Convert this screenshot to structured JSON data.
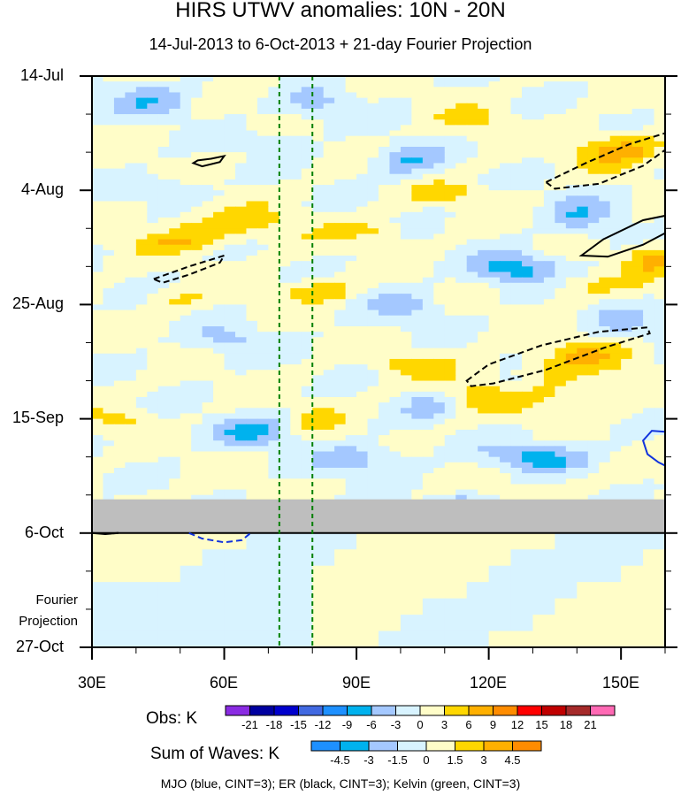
{
  "chart_data": {
    "type": "heatmap",
    "title": "HIRS UTWV anomalies: 10N - 20N",
    "subtitle": "14-Jul-2013 to 6-Oct-2013 + 21-day Fourier Projection",
    "x_axis": {
      "range": [
        30,
        160
      ],
      "ticks": [
        "30E",
        "60E",
        "90E",
        "120E",
        "150E"
      ]
    },
    "y_axis": {
      "range": [
        "14-Jul-2013",
        "27-Oct-2013"
      ],
      "ticks": [
        "14-Jul",
        "4-Aug",
        "25-Aug",
        "15-Sep",
        "6-Oct",
        "27-Oct"
      ]
    },
    "projection_label": [
      "Fourier",
      "Projection"
    ],
    "missing_data_band": {
      "from": "30-Sep-2013",
      "to": "6-Oct-2013",
      "color": "#bebebe"
    },
    "kelvin_phase_lines_lon": [
      72.5,
      80
    ],
    "obs_colorbar": {
      "title": "Obs: K",
      "levels": [
        "-21",
        "-18",
        "-15",
        "-12",
        "-9",
        "-6",
        "-3",
        "0",
        "3",
        "6",
        "9",
        "12",
        "15",
        "18",
        "21"
      ],
      "colors": [
        "#8a2be2",
        "#0000a0",
        "#0000cd",
        "#4169e1",
        "#1e90ff",
        "#00b2ee",
        "#a4c8ff",
        "#d8f3ff",
        "#fffdc8",
        "#ffd700",
        "#ffb000",
        "#ff8c00",
        "#ff0000",
        "#c00000",
        "#a52a2a",
        "#ff69b4"
      ]
    },
    "waves_colorbar": {
      "title": "Sum of Waves: K",
      "levels": [
        "-4.5",
        "-3",
        "-1.5",
        "0",
        "1.5",
        "3",
        "4.5"
      ],
      "colors": [
        "#1e90ff",
        "#00b2ee",
        "#a4c8ff",
        "#d8f3ff",
        "#fffdc8",
        "#ffd700",
        "#ffb000",
        "#ff8c00"
      ]
    },
    "contours": [
      {
        "wave": "MJO",
        "color": "blue",
        "cint": 3
      },
      {
        "wave": "ER",
        "color": "black",
        "cint": 3
      },
      {
        "wave": "Kelvin",
        "color": "green",
        "cint": 3
      }
    ],
    "footnote": "MJO (blue, CINT=3); ER (black, CINT=3); Kelvin (green, CINT=3)"
  }
}
